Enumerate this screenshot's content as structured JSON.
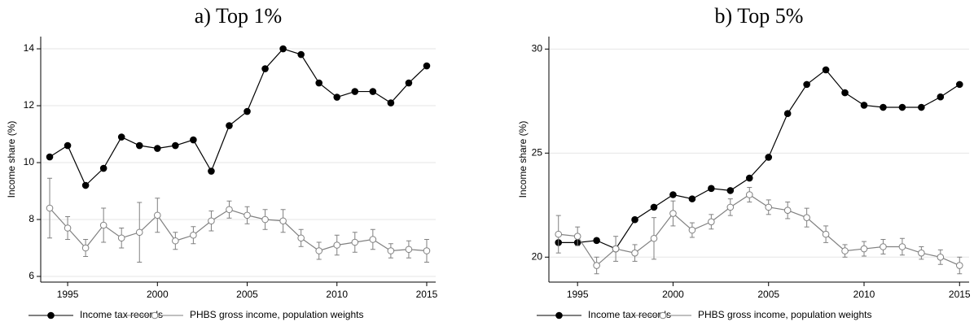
{
  "chart_data": [
    {
      "type": "line",
      "title": "a) Top 1%",
      "y_label": "Income share (%)",
      "x": [
        1994,
        1995,
        1996,
        1997,
        1998,
        1999,
        2000,
        2001,
        2002,
        2003,
        2004,
        2005,
        2006,
        2007,
        2008,
        2009,
        2010,
        2011,
        2012,
        2013,
        2014,
        2015
      ],
      "xlim": [
        1993.5,
        2015.5
      ],
      "xticks": [
        1995,
        2000,
        2005,
        2010,
        2015
      ],
      "ylim": [
        5.8,
        14.43
      ],
      "yticks": [
        6,
        8,
        10,
        12,
        14
      ],
      "grid": true,
      "legend": "bottom",
      "series": [
        {
          "name": "Income tax records",
          "color": "#000000",
          "marker": "filled",
          "values": [
            10.2,
            10.6,
            9.2,
            9.8,
            10.9,
            10.6,
            10.5,
            10.6,
            10.8,
            9.7,
            11.3,
            11.8,
            13.3,
            14.0,
            13.8,
            12.8,
            12.3,
            12.5,
            12.5,
            12.1,
            12.8,
            13.4
          ]
        },
        {
          "name": "PHBS gross income, population weights",
          "color": "#808080",
          "marker": "hollow",
          "values": [
            8.4,
            7.7,
            7.0,
            7.8,
            7.35,
            7.55,
            8.15,
            7.25,
            7.45,
            7.95,
            8.35,
            8.15,
            8.0,
            7.95,
            7.35,
            6.9,
            7.1,
            7.2,
            7.3,
            6.9,
            6.95,
            6.9
          ],
          "errors": [
            1.05,
            0.4,
            0.3,
            0.6,
            0.35,
            1.05,
            0.6,
            0.3,
            0.3,
            0.35,
            0.3,
            0.3,
            0.35,
            0.4,
            0.3,
            0.3,
            0.35,
            0.35,
            0.35,
            0.25,
            0.3,
            0.4
          ]
        }
      ]
    },
    {
      "type": "line",
      "title": "b) Top 5%",
      "y_label": "Income share (%)",
      "x": [
        1994,
        1995,
        1996,
        1997,
        1998,
        1999,
        2000,
        2001,
        2002,
        2003,
        2004,
        2005,
        2006,
        2007,
        2008,
        2009,
        2010,
        2011,
        2012,
        2013,
        2014,
        2015
      ],
      "xlim": [
        1993.5,
        2015.5
      ],
      "xticks": [
        1995,
        2000,
        2005,
        2010,
        2015
      ],
      "ylim": [
        18.8,
        30.6
      ],
      "yticks": [
        20,
        25,
        30
      ],
      "grid": true,
      "legend": "bottom",
      "series": [
        {
          "name": "Income tax records",
          "color": "#000000",
          "marker": "filled",
          "values": [
            20.7,
            20.7,
            20.8,
            20.4,
            21.8,
            22.4,
            23.0,
            22.8,
            23.3,
            23.2,
            23.8,
            24.8,
            26.9,
            28.3,
            29.0,
            27.9,
            27.3,
            27.2,
            27.2,
            27.2,
            27.7,
            28.3
          ]
        },
        {
          "name": "PHBS gross income, population weights",
          "color": "#808080",
          "marker": "hollow",
          "values": [
            21.1,
            21.0,
            19.6,
            20.4,
            20.2,
            20.9,
            22.1,
            21.3,
            21.7,
            22.4,
            23.0,
            22.4,
            22.25,
            21.9,
            21.1,
            20.3,
            20.4,
            20.5,
            20.5,
            20.2,
            20.0,
            19.6
          ],
          "errors": [
            0.9,
            0.45,
            0.4,
            0.6,
            0.4,
            1.0,
            0.6,
            0.35,
            0.35,
            0.4,
            0.35,
            0.35,
            0.4,
            0.45,
            0.4,
            0.3,
            0.35,
            0.35,
            0.4,
            0.3,
            0.35,
            0.4
          ]
        }
      ]
    }
  ]
}
